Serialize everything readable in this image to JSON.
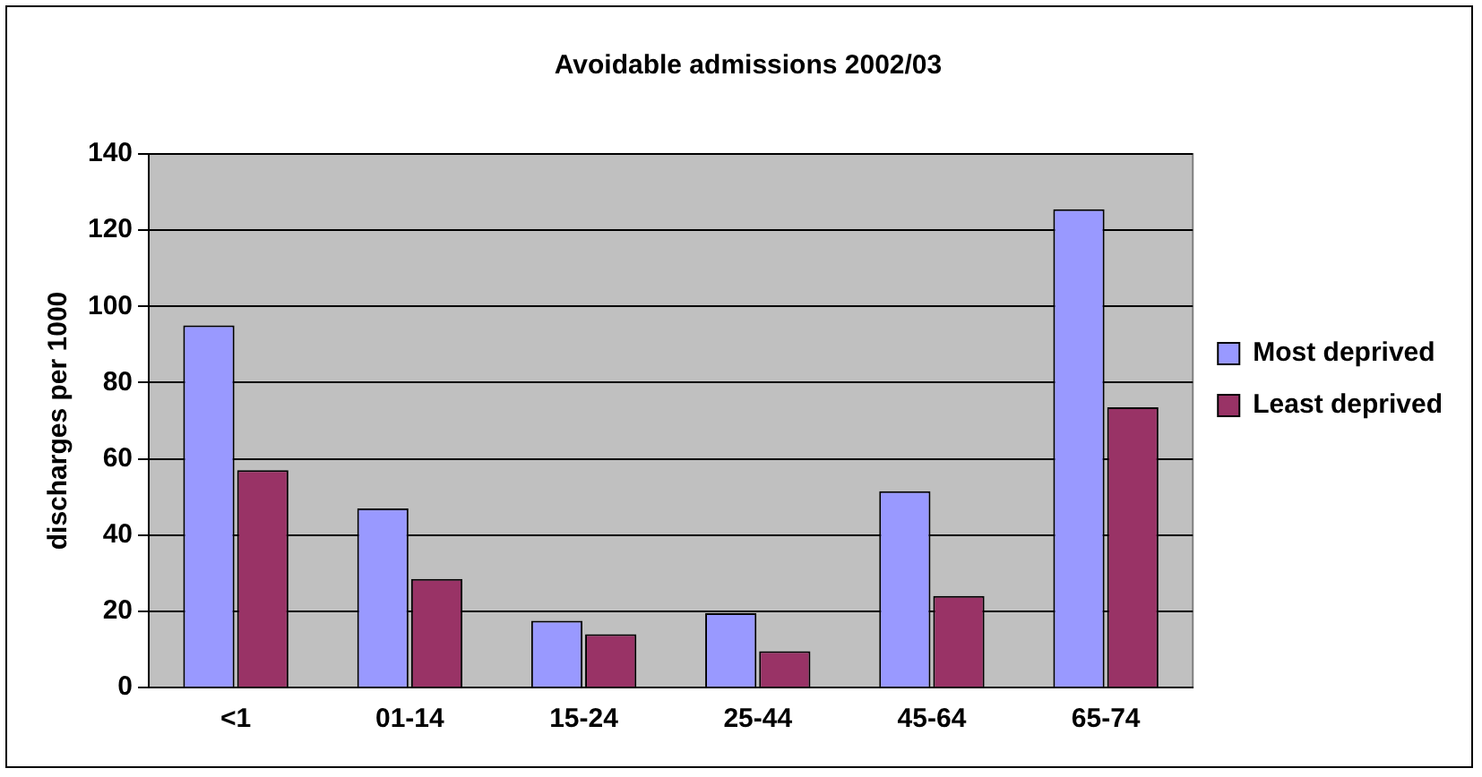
{
  "chart_data": {
    "type": "bar",
    "title": "Avoidable admissions 2002/03",
    "ylabel": "discharges per 1000",
    "categories": [
      "<1",
      "01-14",
      "15-24",
      "25-44",
      "45-64",
      "65-74"
    ],
    "series": [
      {
        "name": "Most deprived",
        "color": "#9999ff",
        "values": [
          95,
          47,
          17.5,
          19.5,
          51.5,
          125.5
        ]
      },
      {
        "name": "Least deprived",
        "color": "#993366",
        "values": [
          57,
          28.5,
          14,
          9.5,
          24,
          73.5
        ]
      }
    ],
    "ylim": [
      0,
      140
    ],
    "yticks": [
      0,
      20,
      40,
      60,
      80,
      100,
      120,
      140
    ],
    "grid": "y",
    "legend": "right"
  }
}
